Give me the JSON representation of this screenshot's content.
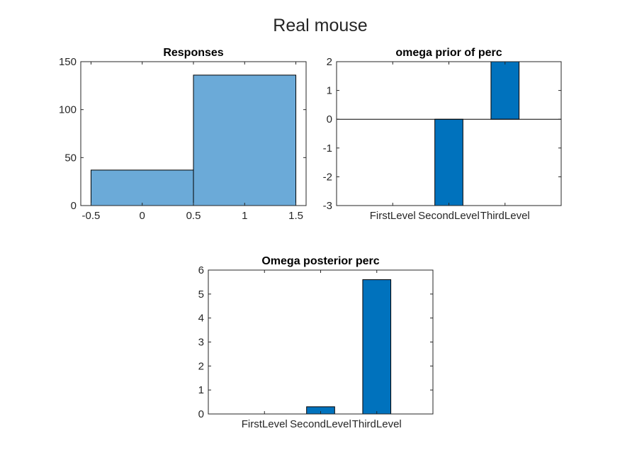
{
  "figure": {
    "title": "Real mouse"
  },
  "chart_data": [
    {
      "type": "bar",
      "subtype": "histogram",
      "title": "Responses",
      "bin_edges": [
        -0.5,
        0.5,
        1.5
      ],
      "values": [
        37,
        136
      ],
      "xlim": [
        -0.6,
        1.6
      ],
      "ylim": [
        0,
        150
      ],
      "xticks": [
        -0.5,
        0,
        0.5,
        1,
        1.5
      ],
      "xtick_labels": [
        "-0.5",
        "0",
        "0.5",
        "1",
        "1.5"
      ],
      "yticks": [
        0,
        50,
        100,
        150
      ],
      "ytick_labels": [
        "0",
        "50",
        "100",
        "150"
      ],
      "bar_color": "#6baad8",
      "xlabel": "",
      "ylabel": ""
    },
    {
      "type": "bar",
      "title": "omega prior of perc",
      "categories": [
        "FirstLevel",
        "SecondLevel",
        "ThirdLevel"
      ],
      "values": [
        0,
        -3,
        2
      ],
      "ylim": [
        -3,
        2
      ],
      "yticks": [
        -3,
        -2,
        -1,
        0,
        1,
        2
      ],
      "ytick_labels": [
        "-3",
        "-2",
        "-1",
        "0",
        "1",
        "2"
      ],
      "bar_color": "#0072bd",
      "xlabel": "",
      "ylabel": ""
    },
    {
      "type": "bar",
      "title": "Omega posterior perc",
      "categories": [
        "FirstLevel",
        "SecondLevel",
        "ThirdLevel"
      ],
      "values": [
        0,
        0.3,
        5.6
      ],
      "ylim": [
        0,
        6
      ],
      "yticks": [
        0,
        1,
        2,
        3,
        4,
        5,
        6
      ],
      "ytick_labels": [
        "0",
        "1",
        "2",
        "3",
        "4",
        "5",
        "6"
      ],
      "bar_color": "#0072bd",
      "xlabel": "",
      "ylabel": ""
    }
  ]
}
